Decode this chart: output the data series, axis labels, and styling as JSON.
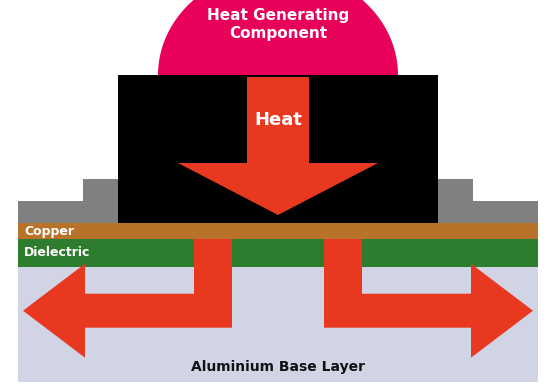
{
  "bg_color": "#ffffff",
  "alum_color": "#d0d4e4",
  "dielectric_color": "#2e7d2e",
  "copper_color": "#b8722a",
  "component_color": "#000000",
  "pad_color": "#808080",
  "blob_color": "#e8005a",
  "arrow_color": "#e83820",
  "text_color_white": "#ffffff",
  "text_color_dark": "#111111",
  "label_copper": "Copper",
  "label_dielectric": "Dielectric",
  "label_alum": "Aluminium Base Layer",
  "label_heat": "Heat",
  "label_component": "Heat Generating\nComponent",
  "fig_w": 5.56,
  "fig_h": 3.92,
  "dpi": 100
}
